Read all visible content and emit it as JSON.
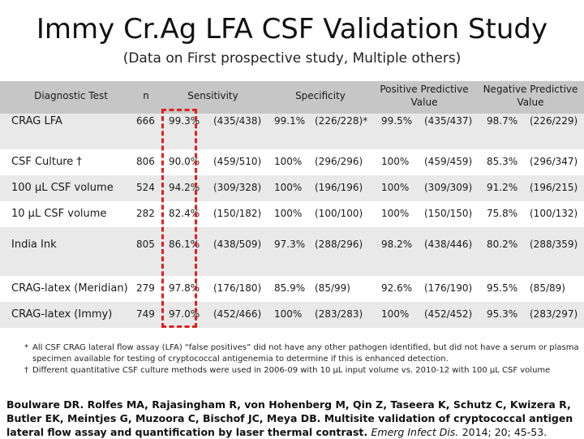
{
  "title": "Immy Cr.Ag LFA CSF Validation Study",
  "subtitle": "(Data on First prospective study, Multiple others)",
  "table": {
    "headers": {
      "test": "Diagnostic Test",
      "n": "n",
      "sensitivity": "Sensitivity",
      "specificity": "Specificity",
      "ppv_line1": "Positive Predictive",
      "ppv_line2": "Value",
      "npv_line1": "Negative Predictive",
      "npv_line2": "Value"
    },
    "rows": [
      {
        "test": "CRAG LFA",
        "n": "666",
        "sens_pct": "99.3%",
        "sens_frac": "(435/438)",
        "spec_pct": "99.1%",
        "spec_frac": "(226/228)*",
        "ppv_pct": "99.5%",
        "ppv_frac": "(435/437)",
        "npv_pct": "98.7%",
        "npv_frac": "(226/229)"
      },
      {
        "test": "CSF Culture †",
        "n": "806",
        "sens_pct": "90.0%",
        "sens_frac": "(459/510)",
        "spec_pct": "100%",
        "spec_frac": "(296/296)",
        "ppv_pct": "100%",
        "ppv_frac": "(459/459)",
        "npv_pct": "85.3%",
        "npv_frac": "(296/347)"
      },
      {
        "test": "100 µL CSF volume",
        "n": "524",
        "sens_pct": "94.2%",
        "sens_frac": "(309/328)",
        "spec_pct": "100%",
        "spec_frac": "(196/196)",
        "ppv_pct": "100%",
        "ppv_frac": "(309/309)",
        "npv_pct": "91.2%",
        "npv_frac": "(196/215)"
      },
      {
        "test": "10 µL CSF volume",
        "n": "282",
        "sens_pct": "82.4%",
        "sens_frac": "(150/182)",
        "spec_pct": "100%",
        "spec_frac": "(100/100)",
        "ppv_pct": "100%",
        "ppv_frac": "(150/150)",
        "npv_pct": "75.8%",
        "npv_frac": "(100/132)"
      },
      {
        "test": "India Ink",
        "n": "805",
        "sens_pct": "86.1%",
        "sens_frac": "(438/509)",
        "spec_pct": "97.3%",
        "spec_frac": "(288/296)",
        "ppv_pct": "98.2%",
        "ppv_frac": "(438/446)",
        "npv_pct": "80.2%",
        "npv_frac": "(288/359)"
      },
      {
        "test": "CRAG-latex (Meridian)",
        "n": "279",
        "sens_pct": "97.8%",
        "sens_frac": "(176/180)",
        "spec_pct": "85.9%",
        "spec_frac": "(85/99)",
        "ppv_pct": "92.6%",
        "ppv_frac": "(176/190)",
        "npv_pct": "95.5%",
        "npv_frac": "(85/89)"
      },
      {
        "test": "CRAG-latex (Immy)",
        "n": "749",
        "sens_pct": "97.0%",
        "sens_frac": "(452/466)",
        "spec_pct": "100%",
        "spec_frac": "(283/283)",
        "ppv_pct": "100%",
        "ppv_frac": "(452/452)",
        "npv_pct": "95.3%",
        "npv_frac": "(283/297)"
      }
    ]
  },
  "footnotes": {
    "star_mark": "*",
    "star_text_1": "All CSF CRAG lateral flow assay (LFA) “false positives” did not have any other pathogen identified, but did not have a serum or plasma",
    "star_text_2": "specimen available for testing of cryptococcal antigenemia to determine if this is enhanced detection.",
    "dagger_mark": "†",
    "dagger_text": "Different quantitative CSF culture methods were used in 2006-09 with 10 µL input volume vs. 2010-12 with 100 µL CSF volume"
  },
  "reference": {
    "authors": "Boulware DR. Rolfes MA, Rajasingham R, von Hohenberg M, Qin Z, Taseera K, Schutz C, Kwizera R, Butler EK, Meintjes G, Muzoora C, Bischof JC, Meya DB. Multisite validation of cryptococcal antigen lateral flow assay and quantification by laser thermal contrast.",
    "journal": "Emerg Infect Dis.",
    "citation": "2014; 20; 45-53."
  },
  "colors": {
    "header_bg": "#c6c6c6",
    "band_bg": "#e9e9e9",
    "highlight_dash": "#e02020"
  }
}
